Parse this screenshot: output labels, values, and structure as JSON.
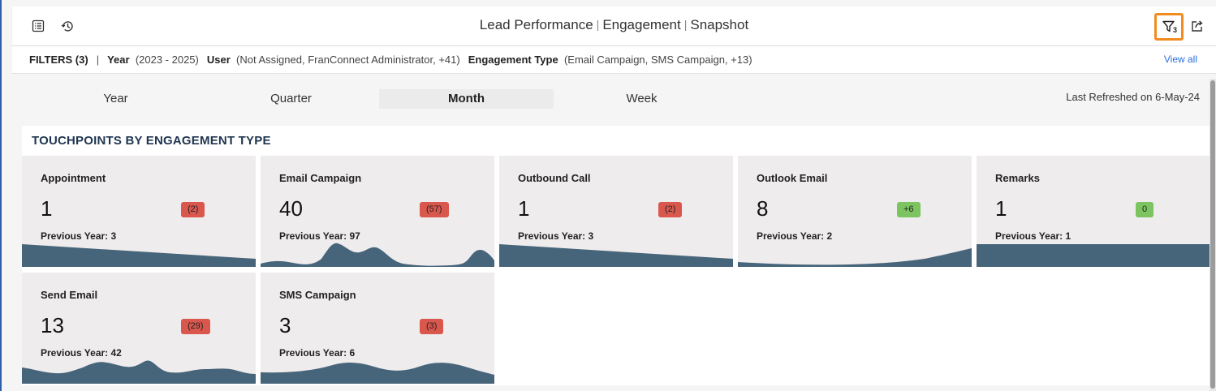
{
  "header": {
    "title_parts": [
      "Lead Performance",
      "Engagement",
      "Snapshot"
    ],
    "title_separator": "|",
    "filter_count": "3"
  },
  "filters": {
    "label": "FILTERS (3)",
    "separator": "|",
    "items": [
      {
        "name": "Year",
        "value": "(2023 - 2025)"
      },
      {
        "name": "User",
        "value": "(Not Assigned, FranConnect Administrator, +41)"
      },
      {
        "name": "Engagement Type",
        "value": "(Email Campaign, SMS Campaign, +13)"
      }
    ],
    "view_all": "View all"
  },
  "periods": {
    "options": [
      "Year",
      "Quarter",
      "Month",
      "Week"
    ],
    "selected": "Month"
  },
  "last_refreshed": "Last Refreshed on 6-May-24",
  "section_title": "TOUCHPOINTS BY ENGAGEMENT TYPE",
  "colors": {
    "sparkline": "#47657a",
    "negative_badge": "#d9574d",
    "positive_badge": "#7cc460",
    "filter_highlight": "#f28c1f"
  },
  "cards": [
    {
      "name": "Appointment",
      "value": "1",
      "change": "(2)",
      "trend": "negative",
      "previous": "Previous Year: 3"
    },
    {
      "name": "Email Campaign",
      "value": "40",
      "change": "(57)",
      "trend": "negative",
      "previous": "Previous Year: 97"
    },
    {
      "name": "Outbound Call",
      "value": "1",
      "change": "(2)",
      "trend": "negative",
      "previous": "Previous Year: 3"
    },
    {
      "name": "Outlook Email",
      "value": "8",
      "change": "+6",
      "trend": "positive",
      "previous": "Previous Year: 2"
    },
    {
      "name": "Remarks",
      "value": "1",
      "change": "0",
      "trend": "positive",
      "previous": "Previous Year: 1"
    },
    {
      "name": "Send Email",
      "value": "13",
      "change": "(29)",
      "trend": "negative",
      "previous": "Previous Year: 42"
    },
    {
      "name": "SMS Campaign",
      "value": "3",
      "change": "(3)",
      "trend": "negative",
      "previous": "Previous Year: 6"
    }
  ]
}
